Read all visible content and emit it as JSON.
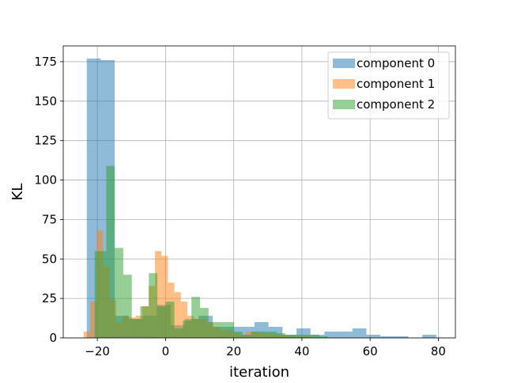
{
  "chart_data": {
    "type": "histogram",
    "title": "",
    "xlabel": "iteration",
    "ylabel": "KL",
    "xlim": [
      -30,
      85
    ],
    "ylim": [
      0,
      185
    ],
    "xticks": [
      -20,
      0,
      20,
      40,
      60,
      80
    ],
    "xtick_labels": [
      "−20",
      "0",
      "20",
      "40",
      "60",
      "80"
    ],
    "yticks": [
      0,
      25,
      50,
      75,
      100,
      125,
      150,
      175
    ],
    "ytick_labels": [
      "0",
      "25",
      "50",
      "75",
      "100",
      "125",
      "150",
      "175"
    ],
    "grid": true,
    "legend_position": "top-right",
    "series": [
      {
        "name": "component 0",
        "color": "#1f77b4",
        "alpha": 0.5,
        "bins": [
          {
            "x0": -23.1,
            "x1": -19.0,
            "count": 177
          },
          {
            "x0": -19.0,
            "x1": -14.9,
            "count": 176
          },
          {
            "x0": -14.9,
            "x1": -10.8,
            "count": 14
          },
          {
            "x0": -10.8,
            "x1": -6.7,
            "count": 12
          },
          {
            "x0": -6.7,
            "x1": -2.6,
            "count": 14
          },
          {
            "x0": -2.6,
            "x1": 1.5,
            "count": 21
          },
          {
            "x0": 1.5,
            "x1": 5.6,
            "count": 8
          },
          {
            "x0": 5.6,
            "x1": 9.7,
            "count": 12
          },
          {
            "x0": 9.7,
            "x1": 13.8,
            "count": 14
          },
          {
            "x0": 13.8,
            "x1": 17.9,
            "count": 7
          },
          {
            "x0": 17.9,
            "x1": 22.0,
            "count": 7
          },
          {
            "x0": 22.0,
            "x1": 26.1,
            "count": 7
          },
          {
            "x0": 26.1,
            "x1": 30.2,
            "count": 10
          },
          {
            "x0": 30.2,
            "x1": 34.3,
            "count": 7
          },
          {
            "x0": 34.3,
            "x1": 38.4,
            "count": 2
          },
          {
            "x0": 38.4,
            "x1": 42.5,
            "count": 6
          },
          {
            "x0": 42.5,
            "x1": 46.6,
            "count": 2
          },
          {
            "x0": 46.6,
            "x1": 50.7,
            "count": 4
          },
          {
            "x0": 50.7,
            "x1": 54.8,
            "count": 4
          },
          {
            "x0": 54.8,
            "x1": 58.9,
            "count": 6
          },
          {
            "x0": 58.9,
            "x1": 63.0,
            "count": 2
          },
          {
            "x0": 63.0,
            "x1": 67.1,
            "count": 1
          },
          {
            "x0": 67.1,
            "x1": 71.2,
            "count": 1
          },
          {
            "x0": 71.2,
            "x1": 75.3,
            "count": 0
          },
          {
            "x0": 75.3,
            "x1": 79.4,
            "count": 2
          }
        ]
      },
      {
        "name": "component 1",
        "color": "#ff7f0e",
        "alpha": 0.5,
        "bins": [
          {
            "x0": -24.0,
            "x1": -22.1,
            "count": 4
          },
          {
            "x0": -22.1,
            "x1": -20.2,
            "count": 23
          },
          {
            "x0": -20.2,
            "x1": -18.3,
            "count": 68
          },
          {
            "x0": -18.3,
            "x1": -16.4,
            "count": 45
          },
          {
            "x0": -16.4,
            "x1": -14.5,
            "count": 24
          },
          {
            "x0": -14.5,
            "x1": -12.6,
            "count": 10
          },
          {
            "x0": -12.6,
            "x1": -10.7,
            "count": 14
          },
          {
            "x0": -10.7,
            "x1": -8.8,
            "count": 13
          },
          {
            "x0": -8.8,
            "x1": -6.9,
            "count": 14
          },
          {
            "x0": -6.9,
            "x1": -5.0,
            "count": 20
          },
          {
            "x0": -5.0,
            "x1": -3.1,
            "count": 33
          },
          {
            "x0": -3.1,
            "x1": -1.2,
            "count": 55
          },
          {
            "x0": -1.2,
            "x1": 0.7,
            "count": 52
          },
          {
            "x0": 0.7,
            "x1": 2.6,
            "count": 35
          },
          {
            "x0": 2.6,
            "x1": 4.5,
            "count": 29
          },
          {
            "x0": 4.5,
            "x1": 6.4,
            "count": 23
          },
          {
            "x0": 6.4,
            "x1": 8.3,
            "count": 14
          },
          {
            "x0": 8.3,
            "x1": 10.2,
            "count": 12
          },
          {
            "x0": 10.2,
            "x1": 12.1,
            "count": 12
          },
          {
            "x0": 12.1,
            "x1": 14.0,
            "count": 10
          },
          {
            "x0": 14.0,
            "x1": 15.9,
            "count": 7
          },
          {
            "x0": 15.9,
            "x1": 17.8,
            "count": 5
          },
          {
            "x0": 17.8,
            "x1": 19.7,
            "count": 5
          },
          {
            "x0": 19.7,
            "x1": 21.6,
            "count": 3
          },
          {
            "x0": 21.6,
            "x1": 23.5,
            "count": 2
          },
          {
            "x0": 23.5,
            "x1": 25.4,
            "count": 4
          },
          {
            "x0": 25.4,
            "x1": 27.3,
            "count": 4
          },
          {
            "x0": 27.3,
            "x1": 29.2,
            "count": 3
          },
          {
            "x0": 29.2,
            "x1": 31.1,
            "count": 3
          },
          {
            "x0": 31.1,
            "x1": 33.0,
            "count": 2
          },
          {
            "x0": 33.0,
            "x1": 34.9,
            "count": 2
          },
          {
            "x0": 34.9,
            "x1": 36.8,
            "count": 1
          },
          {
            "x0": 36.8,
            "x1": 38.7,
            "count": 1
          },
          {
            "x0": 38.7,
            "x1": 40.6,
            "count": 1
          },
          {
            "x0": 40.6,
            "x1": 42.5,
            "count": 1
          }
        ]
      },
      {
        "name": "component 2",
        "color": "#2ca02c",
        "alpha": 0.5,
        "bins": [
          {
            "x0": -20.8,
            "x1": -17.4,
            "count": 55
          },
          {
            "x0": -17.4,
            "x1": -14.9,
            "count": 109
          },
          {
            "x0": -14.9,
            "x1": -12.4,
            "count": 57
          },
          {
            "x0": -12.4,
            "x1": -9.9,
            "count": 40
          },
          {
            "x0": -9.9,
            "x1": -7.4,
            "count": 12
          },
          {
            "x0": -7.4,
            "x1": -4.9,
            "count": 20
          },
          {
            "x0": -4.9,
            "x1": -2.4,
            "count": 41
          },
          {
            "x0": -2.4,
            "x1": 0.1,
            "count": 20
          },
          {
            "x0": 0.1,
            "x1": 2.6,
            "count": 23
          },
          {
            "x0": 2.6,
            "x1": 5.1,
            "count": 6
          },
          {
            "x0": 5.1,
            "x1": 7.6,
            "count": 11
          },
          {
            "x0": 7.6,
            "x1": 10.1,
            "count": 26
          },
          {
            "x0": 10.1,
            "x1": 12.6,
            "count": 19
          },
          {
            "x0": 12.6,
            "x1": 15.1,
            "count": 10
          },
          {
            "x0": 15.1,
            "x1": 17.6,
            "count": 10
          },
          {
            "x0": 17.6,
            "x1": 20.1,
            "count": 10
          },
          {
            "x0": 20.1,
            "x1": 22.6,
            "count": 4
          },
          {
            "x0": 22.6,
            "x1": 25.1,
            "count": 2
          },
          {
            "x0": 25.1,
            "x1": 27.6,
            "count": 4
          },
          {
            "x0": 27.6,
            "x1": 30.1,
            "count": 4
          },
          {
            "x0": 30.1,
            "x1": 32.6,
            "count": 4
          },
          {
            "x0": 32.6,
            "x1": 35.1,
            "count": 3
          },
          {
            "x0": 35.1,
            "x1": 37.6,
            "count": 2
          },
          {
            "x0": 37.6,
            "x1": 40.1,
            "count": 2
          },
          {
            "x0": 40.1,
            "x1": 42.6,
            "count": 2
          },
          {
            "x0": 42.6,
            "x1": 45.1,
            "count": 2
          },
          {
            "x0": 45.1,
            "x1": 47.6,
            "count": 1
          }
        ]
      }
    ]
  }
}
